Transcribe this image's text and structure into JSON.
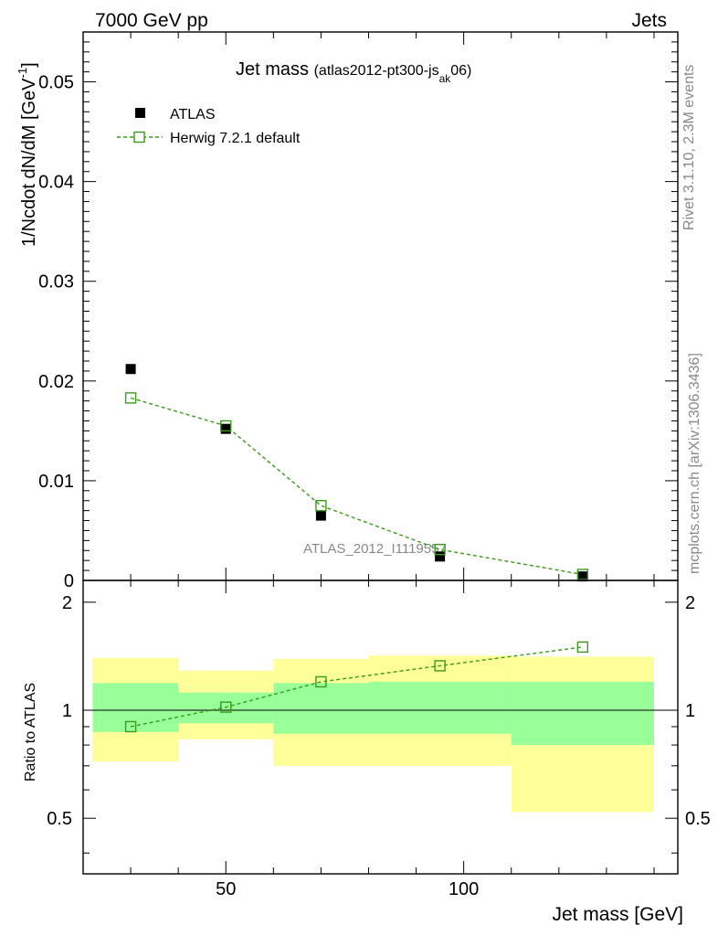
{
  "header": {
    "left": "7000 GeV pp",
    "right": "Jets"
  },
  "side_text": {
    "upper": "Rivet 3.1.10,  2.3M events",
    "lower": "mcplots.cern.ch [arXiv:1306.3436]"
  },
  "watermark": "ATLAS_2012_I1119557",
  "colors": {
    "data": "#000000",
    "mc": "#3a9a1a",
    "band_inner": "#99ff99",
    "band_outer": "#ffff99"
  },
  "chart_data": [
    {
      "type": "scatter",
      "title": "Jet mass",
      "subtitle": "(atlas2012-pt300-js",
      "subtitle_sub": "ak",
      "subtitle_end": "06)",
      "ylabel": "1/Ncdot dN/dM [GeV",
      "ylabel_sup": "-1",
      "ylabel_end": "]",
      "xlim": [
        20,
        145
      ],
      "ylim": [
        0,
        0.055
      ],
      "yticks": [
        0,
        0.01,
        0.02,
        0.03,
        0.04,
        0.05
      ],
      "ytick_labels": [
        "0",
        "0.01",
        "0.02",
        "0.03",
        "0.04",
        "0.05"
      ],
      "legend_position": "top-left",
      "series": [
        {
          "name": "ATLAS",
          "style": "black-squares",
          "x": [
            30,
            50,
            70,
            95,
            125
          ],
          "y": [
            0.0212,
            0.0152,
            0.0065,
            0.0024,
            0.0004
          ]
        },
        {
          "name": "Herwig 7.2.1 default",
          "style": "green-dashed-open-squares",
          "x": [
            30,
            50,
            70,
            95,
            125
          ],
          "y": [
            0.0183,
            0.0155,
            0.0075,
            0.0031,
            0.0006
          ]
        }
      ]
    },
    {
      "type": "ratio",
      "ylabel": "Ratio to ATLAS",
      "xlabel": "Jet mass [GeV]",
      "xlim": [
        20,
        145
      ],
      "ylim": [
        0.35,
        2.3
      ],
      "yticks": [
        0.5,
        1,
        2
      ],
      "ytick_labels": [
        "0.5",
        "1",
        "2"
      ],
      "xticks": [
        50,
        100
      ],
      "xtick_labels": [
        "50",
        "100"
      ],
      "bins": [
        {
          "lo": 22,
          "hi": 40,
          "inner": [
            0.87,
            1.19
          ],
          "outer": [
            0.72,
            1.4
          ]
        },
        {
          "lo": 40,
          "hi": 60,
          "inner": [
            0.92,
            1.12
          ],
          "outer": [
            0.83,
            1.29
          ]
        },
        {
          "lo": 60,
          "hi": 80,
          "inner": [
            0.86,
            1.19
          ],
          "outer": [
            0.7,
            1.39
          ]
        },
        {
          "lo": 80,
          "hi": 110,
          "inner": [
            0.86,
            1.2
          ],
          "outer": [
            0.7,
            1.42
          ]
        },
        {
          "lo": 110,
          "hi": 140,
          "inner": [
            0.8,
            1.2
          ],
          "outer": [
            0.52,
            1.41
          ]
        }
      ],
      "mc_ratio": {
        "x": [
          30,
          50,
          70,
          95,
          125
        ],
        "y": [
          0.9,
          1.02,
          1.2,
          1.33,
          1.5
        ]
      }
    }
  ]
}
